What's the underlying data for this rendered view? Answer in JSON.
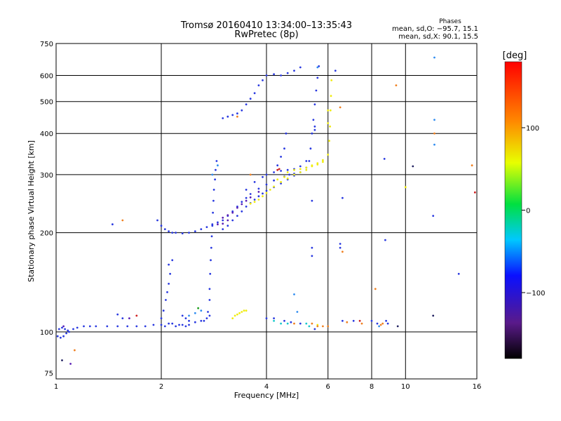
{
  "chart_data": {
    "type": "scatter",
    "title": "Tromsø 20160410 13:34:00–13:35:43",
    "subtitle": "RwPretec (8p)",
    "xlabel": "Frequency [MHz]",
    "ylabel": "Stationary phase Virtual Height [km]",
    "x_scale": "log",
    "y_scale": "log",
    "xlim": [
      1,
      16
    ],
    "ylim": [
      72,
      750
    ],
    "x_ticks": [
      1,
      2,
      4,
      6,
      8,
      10,
      16
    ],
    "y_ticks": [
      75,
      100,
      200,
      300,
      400,
      500,
      600,
      750
    ],
    "grid": true,
    "legend": {
      "title": "Phases",
      "lines": [
        "mean, sd,O: −95.7, 15.1",
        "mean, sd,X:  90.1, 15.5"
      ],
      "placement": "top-right"
    },
    "colorbar": {
      "label": "[deg]",
      "ticks": [
        100,
        0,
        -100
      ],
      "range": [
        -180,
        180
      ],
      "colormap": "rainbow"
    },
    "series": [
      {
        "color": "#2a3ae0",
        "points": [
          [
            1.01,
            97
          ],
          [
            1.03,
            96
          ],
          [
            1.05,
            97
          ],
          [
            1.07,
            99
          ],
          [
            1.09,
            100
          ],
          [
            1.12,
            102
          ],
          [
            1.15,
            103
          ],
          [
            1.2,
            104
          ],
          [
            1.25,
            104
          ],
          [
            1.3,
            104
          ],
          [
            1.4,
            104
          ],
          [
            1.5,
            104
          ],
          [
            1.6,
            104
          ],
          [
            1.7,
            104
          ],
          [
            1.8,
            104
          ],
          [
            1.9,
            105
          ],
          [
            2.0,
            105
          ],
          [
            2.05,
            104
          ],
          [
            2.1,
            106
          ],
          [
            1.02,
            102
          ],
          [
            1.04,
            103
          ],
          [
            1.06,
            102
          ],
          [
            1.08,
            101
          ],
          [
            2.0,
            110
          ],
          [
            2.03,
            116
          ],
          [
            2.06,
            125
          ],
          [
            2.08,
            132
          ],
          [
            2.1,
            140
          ],
          [
            2.12,
            150
          ],
          [
            2.1,
            160
          ],
          [
            2.15,
            165
          ],
          [
            2.15,
            106
          ],
          [
            2.2,
            104
          ],
          [
            2.25,
            105
          ],
          [
            2.3,
            105
          ],
          [
            2.35,
            104
          ],
          [
            2.4,
            105
          ],
          [
            2.5,
            107
          ],
          [
            2.6,
            108
          ],
          [
            2.65,
            108
          ],
          [
            2.7,
            110
          ],
          [
            2.75,
            112
          ],
          [
            2.72,
            115
          ],
          [
            2.75,
            125
          ],
          [
            2.75,
            135
          ],
          [
            2.76,
            150
          ],
          [
            2.77,
            165
          ],
          [
            2.78,
            180
          ],
          [
            2.79,
            195
          ],
          [
            2.8,
            210
          ],
          [
            2.81,
            230
          ],
          [
            2.82,
            250
          ],
          [
            2.83,
            270
          ],
          [
            2.85,
            290
          ],
          [
            2.86,
            310
          ],
          [
            2.88,
            330
          ],
          [
            1.95,
            218
          ],
          [
            2.0,
            210
          ],
          [
            2.05,
            205
          ],
          [
            2.1,
            202
          ],
          [
            2.15,
            200
          ],
          [
            2.2,
            200
          ],
          [
            2.3,
            199
          ],
          [
            2.4,
            200
          ],
          [
            2.5,
            202
          ],
          [
            2.6,
            205
          ],
          [
            2.7,
            208
          ],
          [
            2.8,
            212
          ],
          [
            2.9,
            215
          ],
          [
            3.0,
            218
          ],
          [
            3.0,
            205
          ],
          [
            3.1,
            210
          ],
          [
            3.2,
            218
          ],
          [
            3.3,
            225
          ],
          [
            3.4,
            232
          ],
          [
            3.5,
            240
          ],
          [
            3.6,
            246
          ],
          [
            3.7,
            252
          ],
          [
            3.8,
            258
          ],
          [
            3.9,
            263
          ],
          [
            4.0,
            268
          ],
          [
            4.2,
            275
          ],
          [
            4.4,
            282
          ],
          [
            4.6,
            290
          ],
          [
            4.8,
            298
          ],
          [
            5.0,
            305
          ],
          [
            5.2,
            315
          ],
          [
            5.3,
            330
          ],
          [
            5.35,
            360
          ],
          [
            5.4,
            400
          ],
          [
            5.45,
            440
          ],
          [
            5.5,
            490
          ],
          [
            5.55,
            540
          ],
          [
            5.6,
            590
          ],
          [
            5.65,
            640
          ],
          [
            3.1,
            225
          ],
          [
            3.2,
            232
          ],
          [
            3.3,
            240
          ],
          [
            3.4,
            248
          ],
          [
            3.5,
            255
          ],
          [
            3.6,
            262
          ],
          [
            3.8,
            272
          ],
          [
            4.0,
            280
          ],
          [
            4.2,
            288
          ],
          [
            4.5,
            296
          ],
          [
            4.8,
            302
          ],
          [
            3.5,
            270
          ],
          [
            3.7,
            285
          ],
          [
            3.9,
            295
          ],
          [
            4.0,
            300
          ],
          [
            4.2,
            305
          ],
          [
            4.4,
            308
          ],
          [
            4.6,
            310
          ],
          [
            4.8,
            312
          ],
          [
            5.0,
            318
          ],
          [
            5.2,
            330
          ],
          [
            4.3,
            320
          ],
          [
            4.4,
            340
          ],
          [
            4.5,
            360
          ],
          [
            4.55,
            400
          ],
          [
            4.65,
            300
          ],
          [
            3.0,
            445
          ],
          [
            3.1,
            450
          ],
          [
            3.2,
            455
          ],
          [
            3.3,
            460
          ],
          [
            3.4,
            470
          ],
          [
            3.5,
            490
          ],
          [
            3.6,
            510
          ],
          [
            3.7,
            530
          ],
          [
            3.8,
            560
          ],
          [
            3.9,
            580
          ],
          [
            4.0,
            600
          ],
          [
            4.2,
            605
          ],
          [
            4.4,
            600
          ],
          [
            4.6,
            610
          ],
          [
            4.8,
            620
          ],
          [
            5.0,
            635
          ],
          [
            2.3,
            112
          ],
          [
            2.35,
            110
          ],
          [
            2.4,
            108
          ],
          [
            1.5,
            113
          ],
          [
            1.55,
            110
          ],
          [
            1.45,
            212
          ],
          [
            4.0,
            110
          ],
          [
            4.2,
            110
          ],
          [
            4.5,
            108
          ],
          [
            4.7,
            107
          ],
          [
            5.0,
            106
          ],
          [
            5.5,
            102
          ],
          [
            6.3,
            620
          ],
          [
            6.6,
            255
          ],
          [
            6.5,
            180
          ],
          [
            6.5,
            185
          ],
          [
            6.6,
            108
          ],
          [
            7.1,
            108
          ],
          [
            8.0,
            108
          ],
          [
            8.3,
            106
          ],
          [
            8.8,
            108
          ],
          [
            8.9,
            106
          ],
          [
            8.7,
            335
          ],
          [
            8.75,
            190
          ],
          [
            12.0,
            225
          ],
          [
            14.2,
            150
          ],
          [
            5.4,
            250
          ],
          [
            5.4,
            170
          ],
          [
            5.4,
            180
          ],
          [
            5.5,
            420
          ],
          [
            5.5,
            410
          ]
        ]
      },
      {
        "color": "#5a1fb5",
        "points": [
          [
            3.0,
            222
          ],
          [
            3.1,
            226
          ],
          [
            3.2,
            230
          ],
          [
            3.3,
            238
          ],
          [
            3.4,
            244
          ],
          [
            3.5,
            250
          ],
          [
            3.6,
            256
          ],
          [
            3.8,
            266
          ],
          [
            2.9,
            212
          ],
          [
            3.0,
            213
          ],
          [
            3.1,
            218
          ],
          [
            1.1,
            80
          ],
          [
            1.62,
            110
          ],
          [
            1.05,
            104
          ]
        ]
      },
      {
        "color": "#2e8cf0",
        "points": [
          [
            2.4,
            112
          ],
          [
            2.5,
            114
          ],
          [
            2.6,
            116
          ],
          [
            2.8,
            300
          ],
          [
            2.9,
            320
          ],
          [
            4.8,
            130
          ],
          [
            4.9,
            115
          ],
          [
            5.6,
            635
          ],
          [
            8.4,
            104
          ],
          [
            12.1,
            370
          ],
          [
            12.1,
            440
          ],
          [
            12.1,
            680
          ]
        ]
      },
      {
        "color": "#18c8cc",
        "points": [
          [
            4.2,
            108
          ],
          [
            4.6,
            106
          ],
          [
            5.2,
            106
          ],
          [
            5.3,
            104
          ],
          [
            4.4,
            106
          ]
        ]
      },
      {
        "color": "#f0ec10",
        "points": [
          [
            3.3,
            113
          ],
          [
            3.35,
            114
          ],
          [
            3.4,
            115
          ],
          [
            3.45,
            116
          ],
          [
            3.5,
            116
          ],
          [
            3.2,
            110
          ],
          [
            3.25,
            112
          ],
          [
            3.6,
            245
          ],
          [
            3.7,
            248
          ],
          [
            3.8,
            252
          ],
          [
            3.9,
            258
          ],
          [
            4.0,
            264
          ],
          [
            4.1,
            270
          ],
          [
            4.2,
            276
          ],
          [
            4.4,
            285
          ],
          [
            4.6,
            292
          ],
          [
            4.8,
            300
          ],
          [
            5.0,
            305
          ],
          [
            5.2,
            310
          ],
          [
            5.4,
            318
          ],
          [
            5.6,
            325
          ],
          [
            5.8,
            332
          ],
          [
            6.0,
            345
          ],
          [
            6.05,
            380
          ],
          [
            6.08,
            420
          ],
          [
            6.1,
            470
          ],
          [
            6.12,
            520
          ],
          [
            6.14,
            580
          ],
          [
            4.6,
            305
          ],
          [
            4.8,
            310
          ],
          [
            5.0,
            312
          ],
          [
            5.2,
            315
          ],
          [
            5.4,
            320
          ],
          [
            5.6,
            322
          ],
          [
            5.8,
            328
          ],
          [
            4.5,
            295
          ],
          [
            4.3,
            290
          ],
          [
            6.0,
            470
          ],
          [
            6.0,
            430
          ],
          [
            5.6,
            105
          ],
          [
            10.0,
            275
          ]
        ]
      },
      {
        "color": "#f08020",
        "points": [
          [
            5.6,
            104
          ],
          [
            5.8,
            104
          ],
          [
            6.0,
            104
          ],
          [
            5.4,
            106
          ],
          [
            4.8,
            106
          ],
          [
            6.5,
            480
          ],
          [
            9.4,
            560
          ],
          [
            12.1,
            400
          ],
          [
            15.5,
            320
          ],
          [
            3.3,
            450
          ],
          [
            3.6,
            300
          ],
          [
            8.2,
            135
          ],
          [
            1.55,
            218
          ],
          [
            1.13,
            88
          ],
          [
            7.5,
            106
          ],
          [
            6.8,
            107
          ],
          [
            6.6,
            175
          ],
          [
            8.5,
            105
          ],
          [
            8.6,
            106
          ]
        ]
      },
      {
        "color": "#d02020",
        "points": [
          [
            4.3,
            310
          ],
          [
            4.35,
            312
          ],
          [
            1.7,
            112
          ],
          [
            15.8,
            265
          ],
          [
            7.4,
            108
          ]
        ]
      },
      {
        "color": "#20a020",
        "points": [
          [
            2.55,
            118
          ]
        ]
      },
      {
        "color": "#202060",
        "points": [
          [
            10.5,
            318
          ],
          [
            12.0,
            112
          ],
          [
            9.5,
            104
          ],
          [
            1.04,
            82
          ]
        ]
      }
    ]
  }
}
